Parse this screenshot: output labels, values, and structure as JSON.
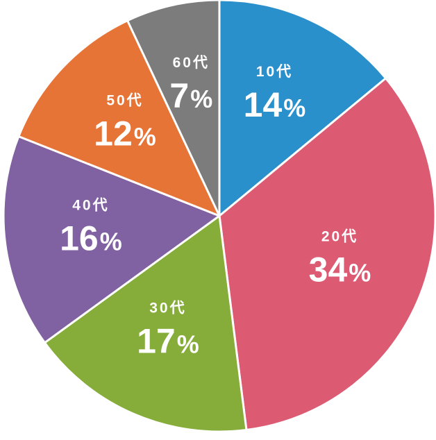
{
  "chart_data": {
    "type": "pie",
    "start_angle": "top",
    "direction": "clockwise",
    "unit": "%",
    "categories": [
      "10代",
      "20代",
      "30代",
      "40代",
      "50代",
      "60代"
    ],
    "values": [
      14,
      34,
      17,
      16,
      12,
      7
    ],
    "colors": [
      "#2a90cc",
      "#dc5b73",
      "#86ad3a",
      "#8062a3",
      "#e77437",
      "#7c7c7c"
    ]
  }
}
